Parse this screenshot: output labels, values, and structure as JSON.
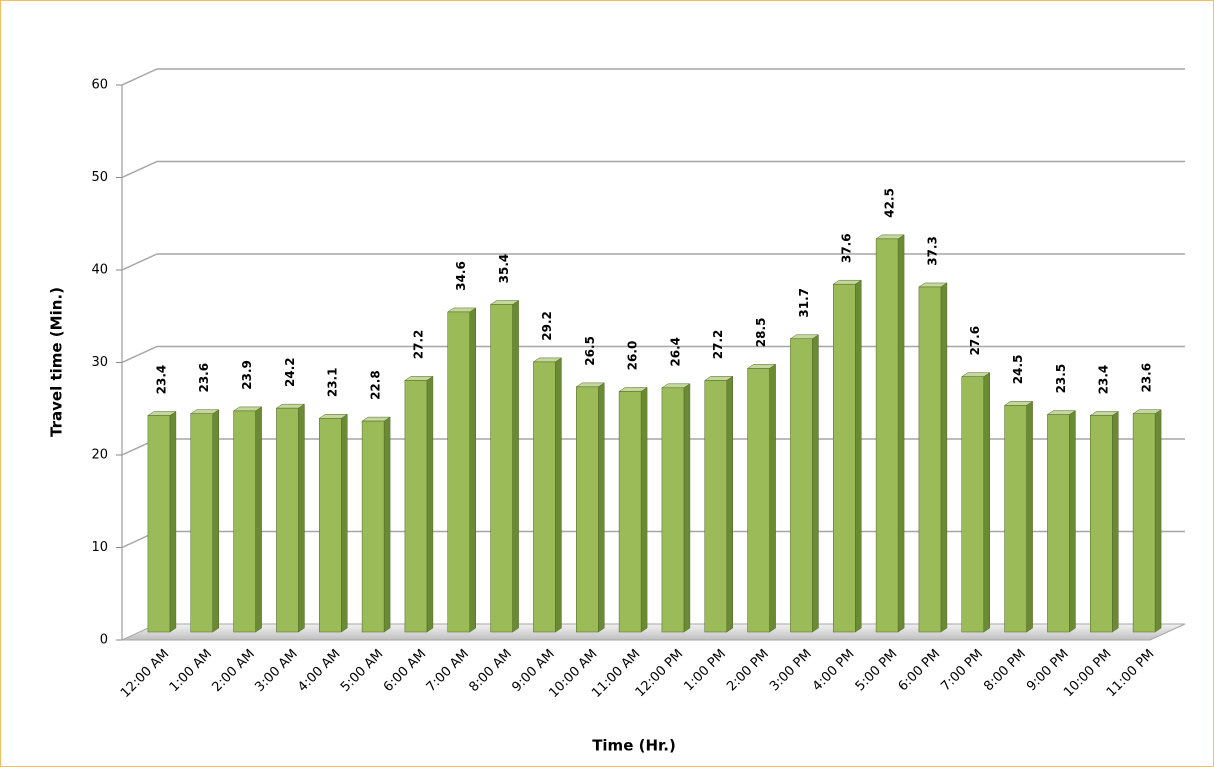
{
  "chart_data": {
    "type": "bar3d",
    "y_label": "Travel time (Min.)",
    "x_label": "Time (Hr.)",
    "categories": [
      "12:00 AM",
      "1:00 AM",
      "2:00 AM",
      "3:00 AM",
      "4:00 AM",
      "5:00 AM",
      "6:00 AM",
      "7:00 AM",
      "8:00 AM",
      "9:00 AM",
      "10:00 AM",
      "11:00 AM",
      "12:00 PM",
      "1:00 PM",
      "2:00 PM",
      "3:00 PM",
      "4:00 PM",
      "5:00 PM",
      "6:00 PM",
      "7:00 PM",
      "8:00 PM",
      "9:00 PM",
      "10:00 PM",
      "11:00 PM"
    ],
    "values": [
      23.4,
      23.6,
      23.9,
      24.2,
      23.1,
      22.8,
      27.2,
      34.6,
      35.4,
      29.2,
      26.5,
      26.0,
      26.4,
      27.2,
      28.5,
      31.7,
      37.6,
      42.5,
      37.3,
      27.6,
      24.5,
      23.5,
      23.4,
      23.6
    ],
    "value_labels": [
      "23.4",
      "23.6",
      "23.9",
      "24.2",
      "23.1",
      "22.8",
      "27.2",
      "34.6",
      "35.4",
      "29.2",
      "26.5",
      "26.0",
      "26.4",
      "27.2",
      "28.5",
      "31.7",
      "37.6",
      "42.5",
      "37.3",
      "27.6",
      "24.5",
      "23.5",
      "23.4",
      "23.6"
    ],
    "color": "#9bbb59",
    "ylim": [
      0,
      60
    ],
    "yticks": [
      0,
      10,
      20,
      30,
      40,
      50,
      60
    ],
    "grid": true
  }
}
